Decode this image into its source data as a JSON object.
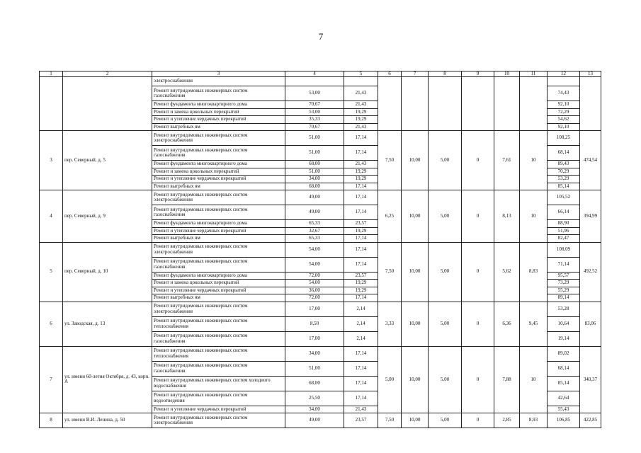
{
  "page_number": "7",
  "table": {
    "header": [
      "1",
      "2",
      "3",
      "4",
      "5",
      "6",
      "7",
      "8",
      "9",
      "10",
      "11",
      "12",
      "13"
    ],
    "groups": [
      {
        "works": [
          {
            "name": "электроснабжения"
          },
          {
            "name": "Ремонт внутридомовых инженерных систем газоснабжения",
            "c4": "53,00",
            "c5": "21,43",
            "c12": "74,43"
          },
          {
            "name": "Ремонт фундамента многоквартирного дома",
            "c4": "70,67",
            "c5": "21,43",
            "c12": "92,10"
          },
          {
            "name": "Ремонт и замена цокольных перекрытий",
            "c4": "53,00",
            "c5": "19,29",
            "c12": "72,29"
          },
          {
            "name": "Ремонт и утепление чердачных перекрытий",
            "c4": "35,33",
            "c5": "19,29",
            "c12": "54,62"
          },
          {
            "name": "Ремонт выгребных ям",
            "c4": "70,67",
            "c5": "21,43",
            "c12": "92,10"
          }
        ]
      },
      {
        "num": "3",
        "address": "пер. Северный, д. 5",
        "c6": "7,50",
        "c7": "10,00",
        "c8": "5,00",
        "c9": "0",
        "c10": "7,61",
        "c11": "10",
        "c13": "474,54",
        "works": [
          {
            "name": "Ремонт внутридомовых инженерных систем электроснабжения",
            "c4": "51,00",
            "c5": "17,14",
            "c12": "108,25"
          },
          {
            "name": "Ремонт внутридомовых инженерных систем газоснабжения",
            "c4": "51,00",
            "c5": "17,14",
            "c12": "68,14"
          },
          {
            "name": "Ремонт фундамента многоквартирного дома",
            "c4": "68,00",
            "c5": "21,43",
            "c12": "89,43"
          },
          {
            "name": "Ремонт и замена цокольных перекрытий",
            "c4": "51,00",
            "c5": "19,29",
            "c12": "70,29"
          },
          {
            "name": "Ремонт и утепление чердачных перекрытий",
            "c4": "34,00",
            "c5": "19,29",
            "c12": "53,29"
          },
          {
            "name": "Ремонт выгребных ям",
            "c4": "68,00",
            "c5": "17,14",
            "c12": "85,14"
          }
        ]
      },
      {
        "num": "4",
        "address": "пер. Северный, д. 9",
        "c6": "6,25",
        "c7": "10,00",
        "c8": "5,00",
        "c9": "0",
        "c10": "8,13",
        "c11": "10",
        "c13": "394,99",
        "works": [
          {
            "name": "Ремонт внутридомовых инженерных систем электроснабжения",
            "c4": "49,00",
            "c5": "17,14",
            "c12": "105,52"
          },
          {
            "name": "Ремонт внутридомовых инженерных систем газоснабжения",
            "c4": "49,00",
            "c5": "17,14",
            "c12": "66,14"
          },
          {
            "name": "Ремонт фундамента многоквартирного дома",
            "c4": "65,33",
            "c5": "23,57",
            "c12": "88,90"
          },
          {
            "name": "Ремонт и утепление чердачных перекрытий",
            "c4": "32,67",
            "c5": "19,29",
            "c12": "51,96"
          },
          {
            "name": "Ремонт выгребных ям",
            "c4": "65,33",
            "c5": "17,14",
            "c12": "82,47"
          }
        ]
      },
      {
        "num": "5",
        "address": "пер. Северный, д. 10",
        "c6": "7,50",
        "c7": "10,00",
        "c8": "5,00",
        "c9": "0",
        "c10": "5,62",
        "c11": "8,83",
        "c13": "492,52",
        "works": [
          {
            "name": "Ремонт внутридомовых инженерных систем электроснабжения",
            "c4": "54,00",
            "c5": "17,14",
            "c12": "108,09"
          },
          {
            "name": "Ремонт внутридомовых инженерных систем газоснабжения",
            "c4": "54,00",
            "c5": "17,14",
            "c12": "71,14"
          },
          {
            "name": "Ремонт фундамента многоквартирного дома",
            "c4": "72,00",
            "c5": "23,57",
            "c12": "95,57"
          },
          {
            "name": "Ремонт и замена цокольных перекрытий",
            "c4": "54,00",
            "c5": "19,29",
            "c12": "73,29"
          },
          {
            "name": "Ремонт и утепление чердачных перекрытий",
            "c4": "36,00",
            "c5": "19,29",
            "c12": "55,29"
          },
          {
            "name": "Ремонт выгребных ям",
            "c4": "72,00",
            "c5": "17,14",
            "c12": "89,14"
          }
        ]
      },
      {
        "num": "6",
        "address": "ул. Заводская, д. 13",
        "c6": "3,33",
        "c7": "10,00",
        "c8": "5,00",
        "c9": "0",
        "c10": "6,36",
        "c11": "9,45",
        "c13": "83,06",
        "works": [
          {
            "name": "Ремонт внутридомовых инженерных систем электроснабжения",
            "c4": "17,00",
            "c5": "2,14",
            "c12": "53,28"
          },
          {
            "name": "Ремонт внутридомовых инженерных систем теплоснабжения",
            "c4": "8,50",
            "c5": "2,14",
            "c12": "10,64"
          },
          {
            "name": "Ремонт внутридомовых инженерных систем газоснабжения",
            "c4": "17,00",
            "c5": "2,14",
            "c12": "19,14"
          }
        ]
      },
      {
        "num": "7",
        "address": "ул. имени 60-летия Октября, д. 43, корп. А",
        "c6": "5,00",
        "c7": "10,00",
        "c8": "5,00",
        "c9": "0",
        "c10": "7,88",
        "c11": "10",
        "c13": "340,37",
        "works": [
          {
            "name": "Ремонт внутридомовых инженерных систем теплоснабжения",
            "c4": "34,00",
            "c5": "17,14",
            "c12": "89,02"
          },
          {
            "name": "Ремонт внутридомовых инженерных систем газоснабжения",
            "c4": "51,00",
            "c5": "17,14",
            "c12": "68,14"
          },
          {
            "name": "Ремонт внутридомовых инженерных систем холодного водоснабжения",
            "c4": "68,00",
            "c5": "17,14",
            "c12": "85,14"
          },
          {
            "name": "Ремонт внутридомовых инженерных систем водоотведения",
            "c4": "25,50",
            "c5": "17,14",
            "c12": "42,64"
          },
          {
            "name": "Ремонт и утепление чердачных перекрытий",
            "c4": "34,00",
            "c5": "21,43",
            "c12": "55,43"
          }
        ]
      },
      {
        "num": "8",
        "address": "ул. имени В.И. Ленина, д. 50",
        "c6": "7,50",
        "c7": "10,00",
        "c8": "5,00",
        "c9": "0",
        "c10": "2,85",
        "c11": "8,93",
        "c13": "422,85",
        "works": [
          {
            "name": "Ремонт внутридомовых инженерных систем электроснабжения",
            "c4": "49,00",
            "c5": "23,57",
            "c12": "106,85"
          }
        ]
      }
    ]
  }
}
